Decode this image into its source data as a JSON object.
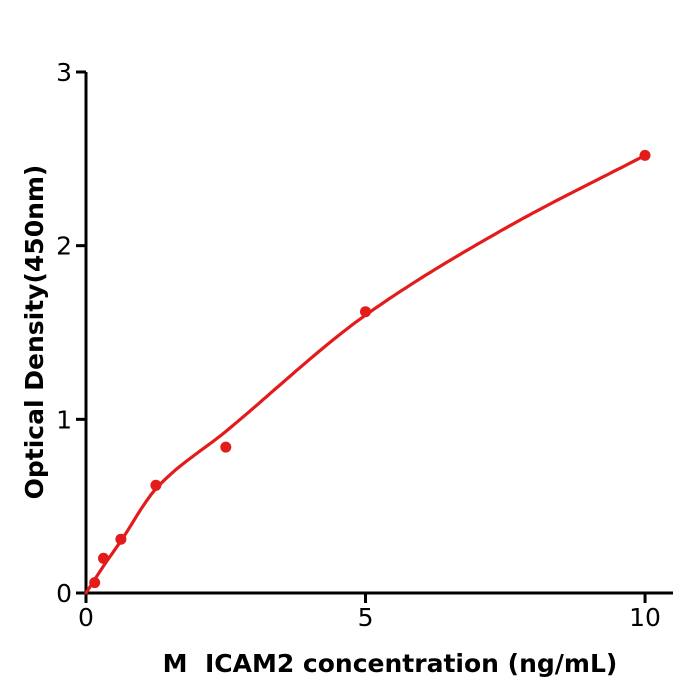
{
  "chart_data": {
    "type": "scatter",
    "title": "",
    "xlabel": "M  ICAM2 concentration (ng/mL)",
    "ylabel": "Optical Density(450nm)",
    "x": [
      0.156,
      0.3125,
      0.625,
      1.25,
      2.5,
      5,
      10
    ],
    "y": [
      0.06,
      0.2,
      0.31,
      0.62,
      0.84,
      1.62,
      2.52
    ],
    "fit_curve": {
      "description": "smooth concave fitted standard curve through origin ending at last point",
      "x": [
        0,
        0.3125,
        0.625,
        1.25,
        2.5,
        5,
        7.5,
        10
      ],
      "y": [
        0,
        0.155,
        0.3,
        0.6,
        0.93,
        1.6,
        2.1,
        2.52
      ]
    },
    "xlim": [
      0,
      10.5
    ],
    "ylim": [
      0,
      3
    ],
    "xticks": [
      0,
      5,
      10
    ],
    "yticks": [
      0,
      1,
      2,
      3
    ],
    "grid": false,
    "legend": null,
    "point_color": "#e31b1b",
    "line_color": "#e31b1b",
    "axis_color": "#000000",
    "background_color": "#ffffff"
  }
}
